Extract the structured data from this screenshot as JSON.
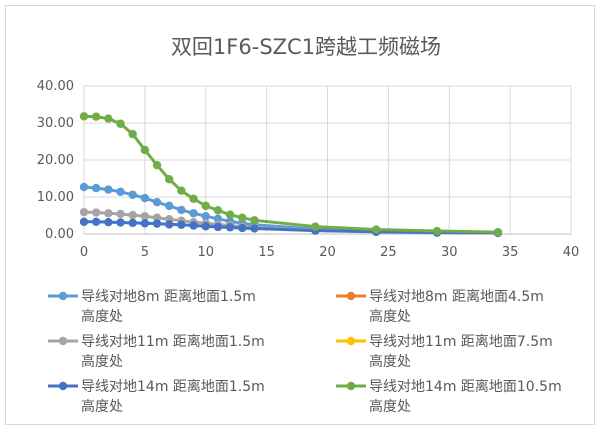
{
  "chart_data": {
    "type": "line",
    "title": "双回1F6-SZC1跨越工频磁场",
    "xlim": [
      0,
      40
    ],
    "ylim": [
      0,
      40
    ],
    "x_ticks": [
      "0",
      "5",
      "10",
      "15",
      "20",
      "25",
      "30",
      "35",
      "40"
    ],
    "y_ticks": [
      "0.00",
      "10.00",
      "20.00",
      "30.00",
      "40.00"
    ],
    "grid": true,
    "legend_position": "bottom",
    "x": [
      0,
      1,
      2,
      3,
      4,
      5,
      6,
      7,
      8,
      9,
      10,
      11,
      12,
      13,
      14,
      19,
      24,
      29,
      34
    ],
    "series": [
      {
        "name": "导线对地8m 距离地面1.5m",
        "name_line2": "高度处",
        "color": "#5b9bd5",
        "values": [
          12.7,
          12.4,
          12.0,
          11.4,
          10.6,
          9.7,
          8.6,
          7.6,
          6.5,
          5.6,
          4.8,
          4.1,
          3.4,
          2.9,
          2.5,
          1.3,
          0.7,
          0.4,
          0.3
        ]
      },
      {
        "name": "导线对地8m 距离地面4.5m",
        "name_line2": "高度处",
        "color": "#ed7d31",
        "values": [
          null,
          null,
          null,
          null,
          null,
          null,
          null,
          null,
          null,
          null,
          null,
          null,
          null,
          null,
          null,
          null,
          null,
          null,
          null
        ]
      },
      {
        "name": "导线对地11m 距离地面1.5m",
        "name_line2": "高度处",
        "color": "#a5a5a5",
        "values": [
          5.9,
          5.8,
          5.6,
          5.4,
          5.1,
          4.8,
          4.4,
          4.0,
          3.6,
          3.2,
          2.9,
          2.6,
          2.3,
          2.0,
          1.8,
          1.0,
          0.6,
          0.4,
          0.3
        ]
      },
      {
        "name": "导线对地11m 距离地面7.5m",
        "name_line2": "高度处",
        "color": "#ffc000",
        "values": [
          null,
          null,
          null,
          null,
          null,
          null,
          null,
          null,
          null,
          null,
          null,
          null,
          null,
          null,
          null,
          null,
          null,
          null,
          null
        ]
      },
      {
        "name": "导线对地14m 距离地面1.5m",
        "name_line2": "高度处",
        "color": "#4472c4",
        "values": [
          3.3,
          3.3,
          3.2,
          3.1,
          3.0,
          2.9,
          2.8,
          2.6,
          2.5,
          2.3,
          2.1,
          1.9,
          1.8,
          1.6,
          1.5,
          0.9,
          0.6,
          0.4,
          0.3
        ]
      },
      {
        "name": "导线对地14m 距离地面10.5m",
        "name_line2": "高度处",
        "color": "#70ad47",
        "values": [
          31.8,
          31.7,
          31.2,
          29.8,
          27.0,
          22.7,
          18.6,
          14.8,
          11.7,
          9.5,
          7.6,
          6.4,
          5.2,
          4.4,
          3.7,
          2.0,
          1.2,
          0.8,
          0.5
        ]
      }
    ]
  }
}
